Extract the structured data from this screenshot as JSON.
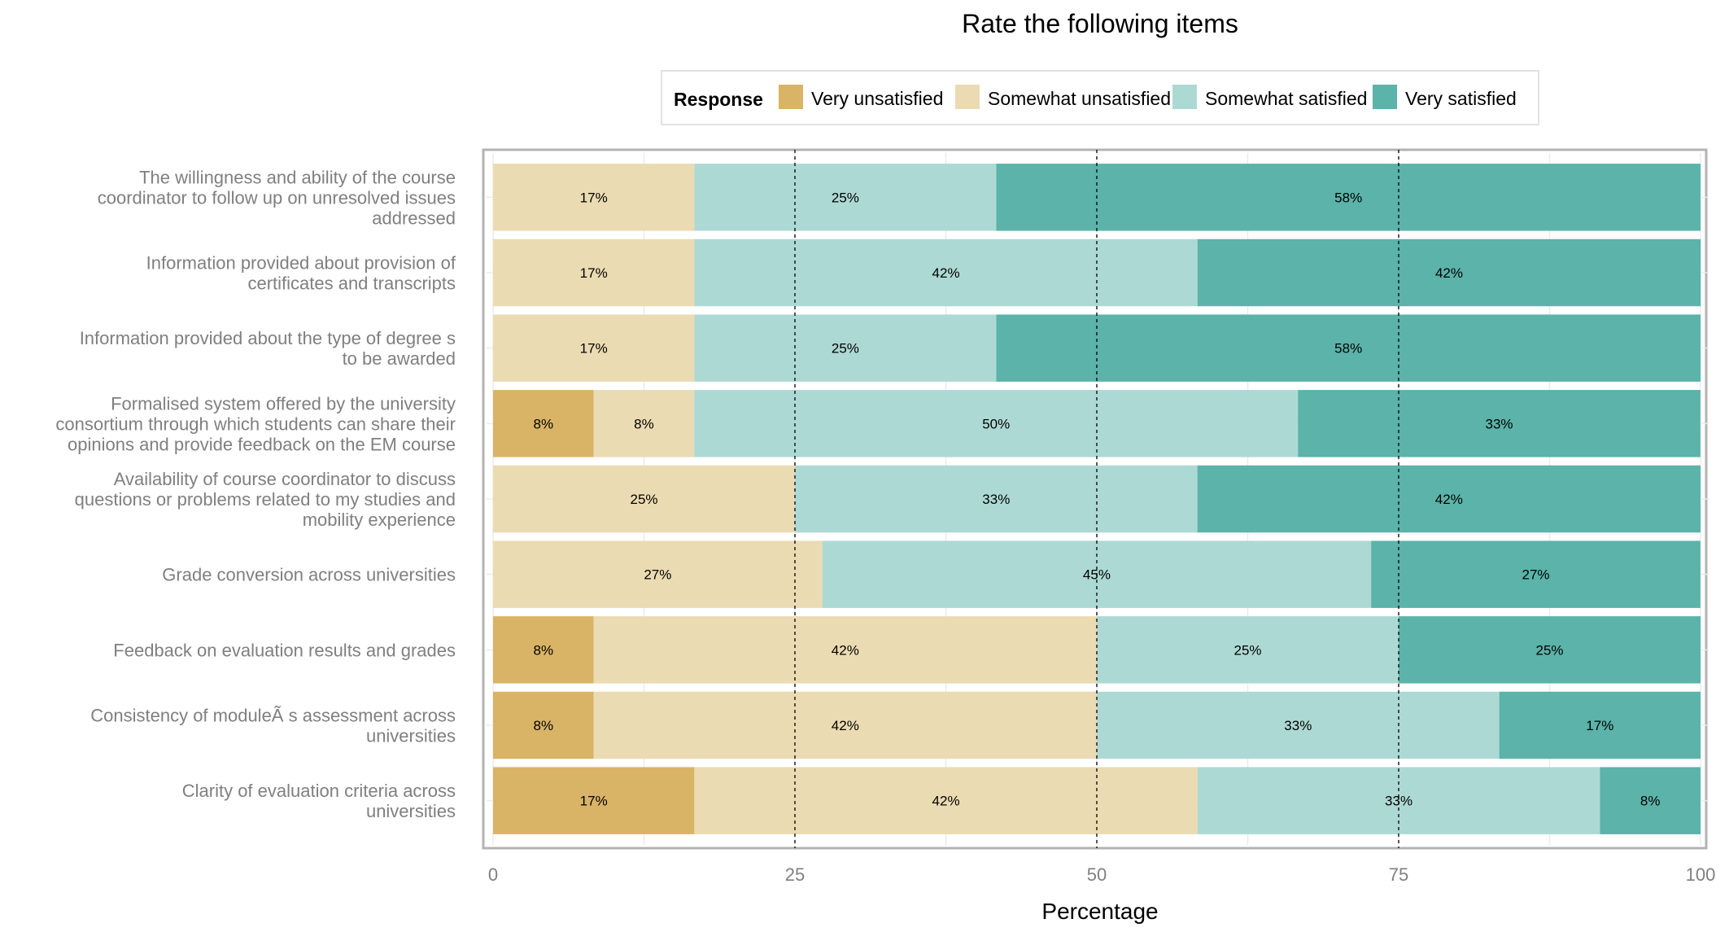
{
  "chart_data": {
    "type": "bar",
    "orientation": "horizontal-stacked",
    "title": "Rate the following items",
    "xlabel": "Percentage",
    "ylabel": "",
    "xlim": [
      0,
      100
    ],
    "x_ticks": [
      "0",
      "25",
      "50",
      "75",
      "100"
    ],
    "reference_lines": [
      25,
      50,
      75
    ],
    "legend": {
      "title": "Response",
      "position": "top"
    },
    "categories": [
      [
        "The willingness and ability of the course",
        "coordinator to follow up on unresolved issues",
        "addressed"
      ],
      [
        "Information provided about provision of",
        "certificates and transcripts"
      ],
      [
        "Information provided about the type of degree s",
        "to be awarded"
      ],
      [
        "Formalised system offered by the university",
        "consortium through which students can share their",
        "opinions and provide feedback on the EM course"
      ],
      [
        "Availability of course coordinator to discuss",
        "questions or problems related to my studies and",
        "mobility experience"
      ],
      [
        "Grade conversion across universities"
      ],
      [
        "Feedback on evaluation results and grades"
      ],
      [
        "Consistency of moduleÃ s assessment across",
        "universities"
      ],
      [
        "Clarity of evaluation criteria across",
        "universities"
      ]
    ],
    "series": [
      {
        "name": "Very unsatisfied",
        "color": "#d9b466",
        "values": [
          0,
          0,
          0,
          8.33,
          0,
          0,
          8.33,
          8.33,
          16.67
        ],
        "labels": [
          "",
          "",
          "",
          "8%",
          "",
          "",
          "8%",
          "8%",
          "17%"
        ]
      },
      {
        "name": "Somewhat unsatisfied",
        "color": "#ebdbb2",
        "values": [
          16.67,
          16.67,
          16.67,
          8.33,
          25,
          27.27,
          41.67,
          41.67,
          41.67
        ],
        "labels": [
          "17%",
          "17%",
          "17%",
          "8%",
          "25%",
          "27%",
          "42%",
          "42%",
          "42%"
        ]
      },
      {
        "name": "Somewhat satisfied",
        "color": "#add9d4",
        "values": [
          25,
          41.67,
          25,
          50,
          33.33,
          45.45,
          25,
          33.33,
          33.33
        ],
        "labels": [
          "25%",
          "42%",
          "25%",
          "50%",
          "33%",
          "45%",
          "25%",
          "33%",
          "33%"
        ]
      },
      {
        "name": "Very satisfied",
        "color": "#5bb3a9",
        "values": [
          58.33,
          41.67,
          58.33,
          33.33,
          41.67,
          27.27,
          25,
          16.67,
          8.33
        ],
        "labels": [
          "58%",
          "42%",
          "58%",
          "33%",
          "42%",
          "27%",
          "25%",
          "17%",
          "8%"
        ]
      }
    ]
  }
}
